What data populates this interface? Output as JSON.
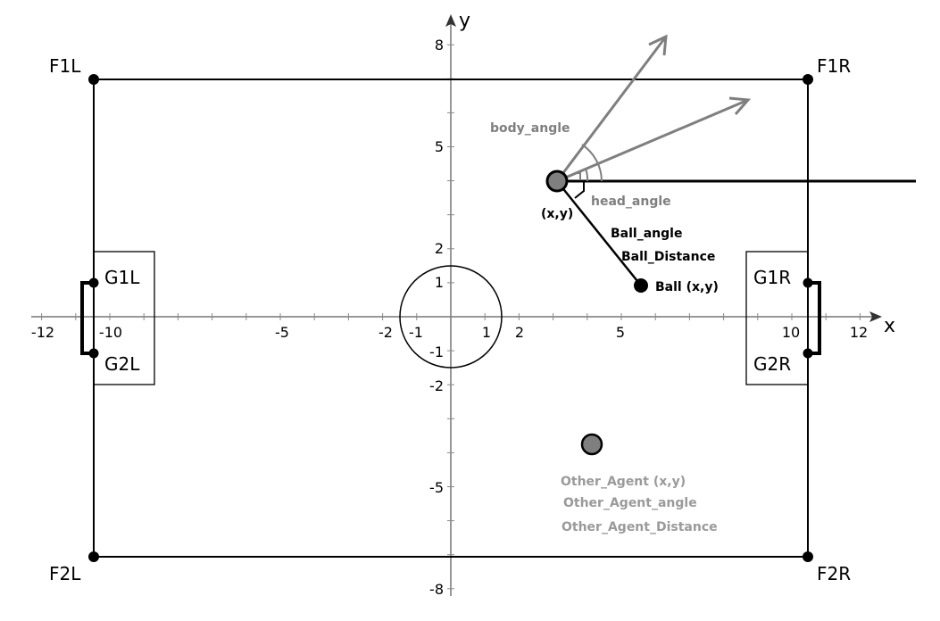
{
  "axes": {
    "x_label": "x",
    "y_label": "y",
    "x_ticks": [
      "-12",
      "-10",
      "-5",
      "-2",
      "-1",
      "1",
      "2",
      "5",
      "10",
      "12"
    ],
    "y_ticks": [
      "8",
      "5",
      "2",
      "1",
      "-1",
      "-2",
      "-5",
      "-8"
    ]
  },
  "field": {
    "corners": {
      "top_left": "F1L",
      "top_right": "F1R",
      "bottom_left": "F2L",
      "bottom_right": "F2R"
    },
    "goalposts": {
      "left_top": "G1L",
      "left_bottom": "G2L",
      "right_top": "G1R",
      "right_bottom": "G2R"
    }
  },
  "agent": {
    "pos_label": "(x,y)",
    "body_angle_label": "body_angle",
    "head_angle_label": "head_angle"
  },
  "ball": {
    "angle_label": "Ball_angle",
    "distance_label": "Ball_Distance",
    "pos_label": "Ball (x,y)"
  },
  "other_agent": {
    "pos_label": "Other_Agent (x,y)",
    "angle_label": "Other_Agent_angle",
    "distance_label": "Other_Agent_Distance"
  },
  "colors": {
    "agent_fill": "#7f7f7f",
    "vector_gray": "#7f7f7f",
    "label_gray": "#9a9a9a",
    "line_black": "#000000"
  }
}
